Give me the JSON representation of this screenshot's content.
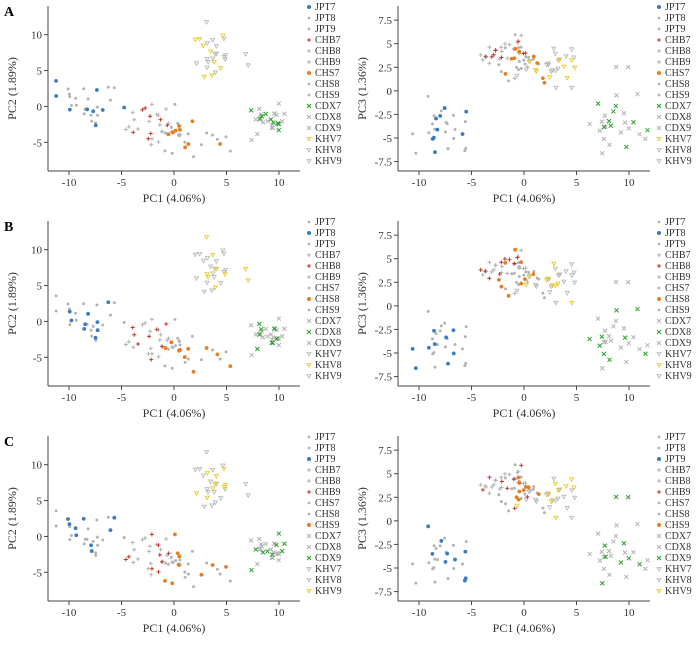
{
  "row_labels": [
    "A",
    "B",
    "C"
  ],
  "population_names": [
    "JPT7",
    "JPT8",
    "JPT9",
    "CHB7",
    "CHB8",
    "CHB9",
    "CHS7",
    "CHS8",
    "CHS9",
    "CDX7",
    "CDX8",
    "CDX9",
    "KHV7",
    "KHV8",
    "KHV9"
  ],
  "colors": {
    "JPT": "#3b7bbf",
    "CHB": "#c0392b",
    "CHS": "#e67e22",
    "CDX": "#2ca02c",
    "KHV": "#e6c619",
    "inactive": "#b4b4b4",
    "axis": "#444444",
    "text": "#333333"
  },
  "chart_data": [
    {
      "panel": "A-left",
      "type": "scatter",
      "xlabel": "PC1 (4.06%)",
      "ylabel": "PC2 (1.89%)",
      "xlim": [
        -12,
        12
      ],
      "ylim": [
        -9,
        14
      ],
      "xticks": [
        -10,
        -5,
        0,
        5,
        10
      ],
      "yticks": [
        -5,
        0,
        5,
        10
      ],
      "highlight": [
        "JPT7",
        "CHB7",
        "CHS7",
        "CDX7",
        "KHV7"
      ],
      "groups": {
        "JPT": {
          "cx": -7.5,
          "cy": 0.5,
          "sx": 1.6,
          "sy": 1.4
        },
        "CHB": {
          "cx": -2,
          "cy": -3,
          "sx": 1.3,
          "sy": 1.3
        },
        "CHS": {
          "cx": 1,
          "cy": -3.5,
          "sx": 1.5,
          "sy": 1.5
        },
        "CDX": {
          "cx": 9,
          "cy": -2,
          "sx": 1.2,
          "sy": 1.1
        },
        "KHV": {
          "cx": 4,
          "cy": 7,
          "sx": 1.3,
          "sy": 1.7
        }
      }
    },
    {
      "panel": "A-right",
      "type": "scatter",
      "xlabel": "PC1 (4.06%)",
      "ylabel": "PC3 (1.36%)",
      "xlim": [
        -12,
        12
      ],
      "ylim": [
        -8.5,
        9
      ],
      "xticks": [
        -10,
        -5,
        0,
        5,
        10
      ],
      "yticks": [
        -7.5,
        -5,
        -2.5,
        0,
        2.5,
        5,
        7.5
      ],
      "highlight": [
        "JPT7",
        "CHB7",
        "CHS7",
        "CDX7",
        "KHV7"
      ],
      "groups": {
        "JPT": {
          "cx": -8,
          "cy": -3,
          "sx": 1.6,
          "sy": 1.7
        },
        "CHB": {
          "cx": -2,
          "cy": 3.5,
          "sx": 1.3,
          "sy": 1.0
        },
        "CHS": {
          "cx": 0,
          "cy": 3,
          "sx": 1.3,
          "sy": 1.1
        },
        "CDX": {
          "cx": 8.5,
          "cy": -3,
          "sx": 1.3,
          "sy": 1.8
        },
        "KHV": {
          "cx": 3,
          "cy": 2,
          "sx": 1.5,
          "sy": 1.0
        }
      }
    },
    {
      "panel": "B-left",
      "type": "scatter",
      "xlabel": "PC1 (4.06%)",
      "ylabel": "PC2 (1.89%)",
      "xlim": [
        -12,
        12
      ],
      "ylim": [
        -9,
        14
      ],
      "xticks": [
        -10,
        -5,
        0,
        5,
        10
      ],
      "yticks": [
        -5,
        0,
        5,
        10
      ],
      "highlight": [
        "JPT8",
        "CHB8",
        "CHS8",
        "CDX8",
        "KHV8"
      ],
      "groups": {
        "JPT": {
          "cx": -7.5,
          "cy": 0.5,
          "sx": 1.6,
          "sy": 1.4
        },
        "CHB": {
          "cx": -2,
          "cy": -3,
          "sx": 1.3,
          "sy": 1.3
        },
        "CHS": {
          "cx": 1,
          "cy": -3.5,
          "sx": 1.5,
          "sy": 1.5
        },
        "CDX": {
          "cx": 9,
          "cy": -2,
          "sx": 1.2,
          "sy": 1.1
        },
        "KHV": {
          "cx": 4,
          "cy": 7,
          "sx": 1.3,
          "sy": 1.7
        }
      }
    },
    {
      "panel": "B-right",
      "type": "scatter",
      "xlabel": "PC1 (4.06%)",
      "ylabel": "PC3 (1.36%)",
      "xlim": [
        -12,
        12
      ],
      "ylim": [
        -8.5,
        9
      ],
      "xticks": [
        -10,
        -5,
        0,
        5,
        10
      ],
      "yticks": [
        -7.5,
        -5,
        -2.5,
        0,
        2.5,
        5,
        7.5
      ],
      "highlight": [
        "JPT8",
        "CHB8",
        "CHS8",
        "CDX8",
        "KHV8"
      ],
      "groups": {
        "JPT": {
          "cx": -8,
          "cy": -3,
          "sx": 1.6,
          "sy": 1.7
        },
        "CHB": {
          "cx": -2,
          "cy": 3.5,
          "sx": 1.3,
          "sy": 1.0
        },
        "CHS": {
          "cx": 0,
          "cy": 3,
          "sx": 1.3,
          "sy": 1.1
        },
        "CDX": {
          "cx": 8.5,
          "cy": -3,
          "sx": 1.3,
          "sy": 1.8
        },
        "KHV": {
          "cx": 3,
          "cy": 2,
          "sx": 1.5,
          "sy": 1.0
        }
      }
    },
    {
      "panel": "C-left",
      "type": "scatter",
      "xlabel": "PC1 (4.06%)",
      "ylabel": "PC2 (1.89%)",
      "xlim": [
        -12,
        12
      ],
      "ylim": [
        -9,
        14
      ],
      "xticks": [
        -10,
        -5,
        0,
        5,
        10
      ],
      "yticks": [
        -5,
        0,
        5,
        10
      ],
      "highlight": [
        "JPT9",
        "CHB9",
        "CHS9",
        "CDX9",
        "KHV9"
      ],
      "groups": {
        "JPT": {
          "cx": -7.5,
          "cy": 0.5,
          "sx": 1.6,
          "sy": 1.4
        },
        "CHB": {
          "cx": -2,
          "cy": -3,
          "sx": 1.3,
          "sy": 1.3
        },
        "CHS": {
          "cx": 1,
          "cy": -3.5,
          "sx": 1.5,
          "sy": 1.5
        },
        "CDX": {
          "cx": 9,
          "cy": -2,
          "sx": 1.2,
          "sy": 1.1
        },
        "KHV": {
          "cx": 4,
          "cy": 7,
          "sx": 1.3,
          "sy": 1.7
        }
      }
    },
    {
      "panel": "C-right",
      "type": "scatter",
      "xlabel": "PC1 (4.06%)",
      "ylabel": "PC3 (1.36%)",
      "xlim": [
        -12,
        12
      ],
      "ylim": [
        -8.5,
        9
      ],
      "xticks": [
        -10,
        -5,
        0,
        5,
        10
      ],
      "yticks": [
        -7.5,
        -5,
        -2.5,
        0,
        2.5,
        5,
        7.5
      ],
      "highlight": [
        "JPT9",
        "CHB9",
        "CHS9",
        "CDX9",
        "KHV9"
      ],
      "groups": {
        "JPT": {
          "cx": -8,
          "cy": -3,
          "sx": 1.6,
          "sy": 1.7
        },
        "CHB": {
          "cx": -2,
          "cy": 3.5,
          "sx": 1.3,
          "sy": 1.0
        },
        "CHS": {
          "cx": 0,
          "cy": 3,
          "sx": 1.3,
          "sy": 1.1
        },
        "CDX": {
          "cx": 8.5,
          "cy": -3,
          "sx": 1.3,
          "sy": 1.8
        },
        "KHV": {
          "cx": 3,
          "cy": 2,
          "sx": 1.5,
          "sy": 1.0
        }
      }
    }
  ]
}
